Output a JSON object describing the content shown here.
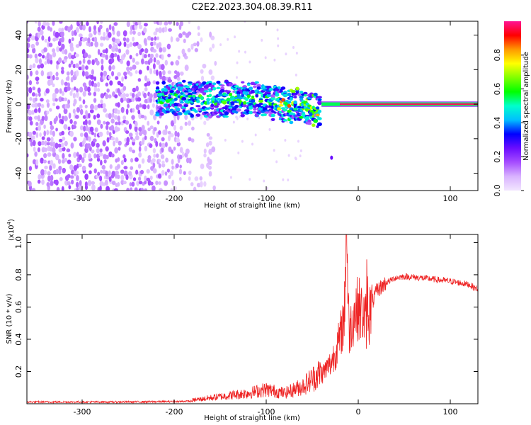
{
  "title": "C2E2.2023.304.08.39.R11",
  "chart_data": [
    {
      "type": "heatmap",
      "xlabel": "Height of straight line (km)",
      "ylabel": "Frequency (Hz)",
      "xlim": [
        -360,
        130
      ],
      "ylim": [
        -50,
        48
      ],
      "xticks": [
        -300,
        -200,
        -100,
        0,
        100
      ],
      "xtick_labels": [
        "-300",
        "-200",
        "-100",
        "0",
        "100"
      ],
      "yticks": [
        -40,
        -20,
        0,
        20,
        40
      ],
      "ytick_labels": [
        "-40",
        "-20",
        "0",
        "20",
        "40"
      ],
      "colorbar": {
        "label": "Normalized spectral amplitude",
        "range": [
          0.0,
          1.0
        ],
        "ticks": [
          0.0,
          0.2,
          0.4,
          0.6,
          0.8
        ],
        "tick_labels": [
          "0.0",
          "0.2",
          "0.4",
          "0.6",
          "0.8"
        ],
        "colors": [
          "#f2e6ff",
          "#d9b3ff",
          "#a64dff",
          "#6a0dff",
          "#0000ff",
          "#00bfff",
          "#00ffcc",
          "#00ff00",
          "#7fff00",
          "#ffff00",
          "#ff9900",
          "#ff0000",
          "#ff1493"
        ]
      },
      "regions": [
        {
          "name": "noise",
          "x_range": [
            -360,
            -160
          ],
          "freq_range": [
            -50,
            48
          ],
          "amplitude": 0.05
        },
        {
          "name": "broad-band",
          "x_range": [
            -220,
            -40
          ],
          "freq_range": [
            -10,
            12
          ],
          "amplitude": 0.3
        },
        {
          "name": "carrier",
          "x_range": [
            -50,
            130
          ],
          "freq_center": 0,
          "amplitude": 1.0
        }
      ]
    },
    {
      "type": "line",
      "xlabel": "Height of straight line (km)",
      "ylabel": "SNR (10 * v/v)",
      "multiplier": "(x10",
      "multiplier_exp": "4",
      "multiplier_close": ")",
      "xlim": [
        -360,
        130
      ],
      "ylim": [
        0,
        1.05
      ],
      "xticks": [
        -300,
        -200,
        -100,
        0,
        100
      ],
      "xtick_labels": [
        "-300",
        "-200",
        "-100",
        "0",
        "100"
      ],
      "yticks": [
        0.2,
        0.4,
        0.6,
        0.8,
        1.0
      ],
      "ytick_labels": [
        "0.2",
        "0.4",
        "0.6",
        "0.8",
        "1.0"
      ],
      "color": "#ee2222",
      "series": [
        {
          "name": "SNR",
          "x": [
            -360,
            -300,
            -250,
            -200,
            -180,
            -150,
            -120,
            -100,
            -80,
            -60,
            -50,
            -40,
            -30,
            -25,
            -20,
            -15,
            -13,
            -10,
            -5,
            0,
            5,
            10,
            15,
            20,
            30,
            40,
            50,
            70,
            100,
            120,
            130
          ],
          "values": [
            0.01,
            0.01,
            0.01,
            0.015,
            0.02,
            0.04,
            0.06,
            0.08,
            0.06,
            0.1,
            0.14,
            0.18,
            0.25,
            0.32,
            0.4,
            0.55,
            1.05,
            0.45,
            0.55,
            0.6,
            0.55,
            0.5,
            0.62,
            0.7,
            0.75,
            0.78,
            0.79,
            0.78,
            0.76,
            0.74,
            0.71
          ]
        }
      ]
    }
  ]
}
